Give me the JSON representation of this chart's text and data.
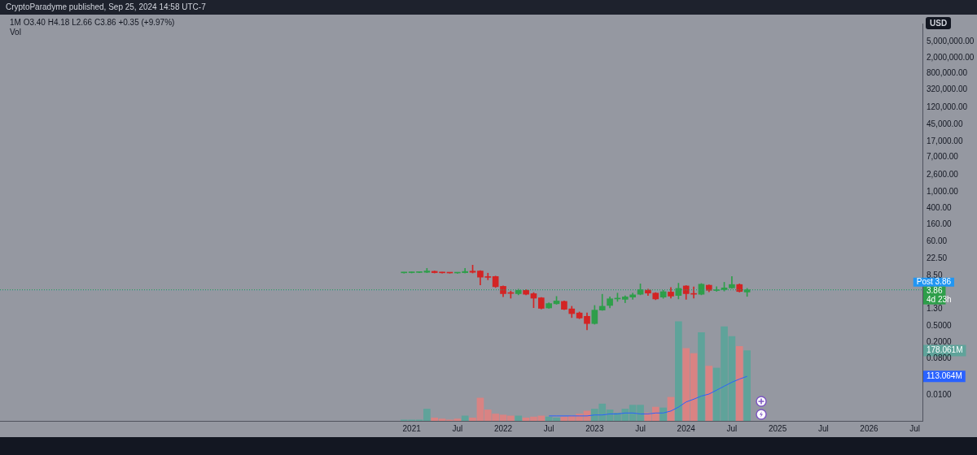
{
  "chart_data": [
    {
      "type": "candlestick",
      "title": "1M  O3.40 H4.18 L2.66 C3.86 +0.35 (+9.97%)",
      "subtitle": "CryptoParadyme published, Sep 25, 2024 14:58 UTC-7",
      "ylabel": "USD",
      "x": [
        "2020-12",
        "2021-01",
        "2021-02",
        "2021-03",
        "2021-04",
        "2021-05",
        "2021-06",
        "2021-07",
        "2021-08",
        "2021-09",
        "2021-10",
        "2021-11",
        "2021-12",
        "2022-01",
        "2022-02",
        "2022-03",
        "2022-04",
        "2022-05",
        "2022-06",
        "2022-07",
        "2022-08",
        "2022-09",
        "2022-10",
        "2022-11",
        "2022-12",
        "2023-01",
        "2023-02",
        "2023-03",
        "2023-04",
        "2023-05",
        "2023-06",
        "2023-07",
        "2023-08",
        "2023-09",
        "2023-10",
        "2023-11",
        "2023-12",
        "2024-01",
        "2024-02",
        "2024-03",
        "2024-04",
        "2024-05",
        "2024-06",
        "2024-07",
        "2024-08",
        "2024-09"
      ],
      "ohlc": [
        [
          10.1,
          10.4,
          9.9,
          10.2
        ],
        [
          10.2,
          10.6,
          10.0,
          10.3
        ],
        [
          10.3,
          10.8,
          10.1,
          10.4
        ],
        [
          10.4,
          13.0,
          10.2,
          11.2
        ],
        [
          11.0,
          11.2,
          10.0,
          10.2
        ],
        [
          10.2,
          10.4,
          9.9,
          10.1
        ],
        [
          10.1,
          10.3,
          9.9,
          10.0
        ],
        [
          10.0,
          10.3,
          9.8,
          10.1
        ],
        [
          10.2,
          13.0,
          10.0,
          10.9
        ],
        [
          11.1,
          15.6,
          10.0,
          10.4
        ],
        [
          11.2,
          11.4,
          5.1,
          7.9
        ],
        [
          7.9,
          9.9,
          6.8,
          7.8
        ],
        [
          8.2,
          8.4,
          4.4,
          4.6
        ],
        [
          4.7,
          4.8,
          2.6,
          3.1
        ],
        [
          3.2,
          3.6,
          2.4,
          3.15
        ],
        [
          3.1,
          4.0,
          2.9,
          3.75
        ],
        [
          3.75,
          3.9,
          2.9,
          3.0
        ],
        [
          3.1,
          3.3,
          1.4,
          2.4
        ],
        [
          2.45,
          2.5,
          1.3,
          1.35
        ],
        [
          1.38,
          1.85,
          1.35,
          1.77
        ],
        [
          1.75,
          2.65,
          1.7,
          2.05
        ],
        [
          2.0,
          2.05,
          1.25,
          1.28
        ],
        [
          1.31,
          1.52,
          0.8,
          1.0
        ],
        [
          1.04,
          1.1,
          0.75,
          0.78
        ],
        [
          0.86,
          1.04,
          0.4,
          0.57
        ],
        [
          0.57,
          1.59,
          0.55,
          1.22
        ],
        [
          1.22,
          3.0,
          1.2,
          1.52
        ],
        [
          1.59,
          2.58,
          1.38,
          2.32
        ],
        [
          2.3,
          3.2,
          2.0,
          2.35
        ],
        [
          2.25,
          2.75,
          1.86,
          2.58
        ],
        [
          2.55,
          3.2,
          2.25,
          2.9
        ],
        [
          3.0,
          5.4,
          2.9,
          3.9
        ],
        [
          3.8,
          4.0,
          2.8,
          3.2
        ],
        [
          3.2,
          3.3,
          2.2,
          2.3
        ],
        [
          2.55,
          3.75,
          2.38,
          3.47
        ],
        [
          3.4,
          4.4,
          2.4,
          2.7
        ],
        [
          2.8,
          5.6,
          2.3,
          4.17
        ],
        [
          4.8,
          4.9,
          2.25,
          3.1
        ],
        [
          3.05,
          4.55,
          2.4,
          3.0
        ],
        [
          3.0,
          5.5,
          2.9,
          5.3
        ],
        [
          5.0,
          5.1,
          3.45,
          3.75
        ],
        [
          3.7,
          4.6,
          3.55,
          3.8
        ],
        [
          3.9,
          5.9,
          3.6,
          4.3
        ],
        [
          4.3,
          8.2,
          4.17,
          5.2
        ],
        [
          5.2,
          5.4,
          3.4,
          3.51
        ],
        [
          3.4,
          4.18,
          2.66,
          3.86
        ]
      ],
      "xlim": [
        "2016-07",
        "2026-08"
      ],
      "xticks": [
        {
          "value": "2021-01",
          "label": "2021"
        },
        {
          "value": "2021-07",
          "label": "Jul"
        },
        {
          "value": "2022-01",
          "label": "2022"
        },
        {
          "value": "2022-07",
          "label": "Jul"
        },
        {
          "value": "2023-01",
          "label": "2023"
        },
        {
          "value": "2023-07",
          "label": "Jul"
        },
        {
          "value": "2024-01",
          "label": "2024"
        },
        {
          "value": "2024-07",
          "label": "Jul"
        },
        {
          "value": "2025-01",
          "label": "2025"
        },
        {
          "value": "2025-07",
          "label": "Jul"
        },
        {
          "value": "2026-01",
          "label": "2026"
        },
        {
          "value": "2026-07",
          "label": "Jul"
        }
      ],
      "log": true,
      "ylim": [
        0.0023,
        13700000
      ],
      "yticks": [
        {
          "value": 0.01,
          "label": "0.0100"
        },
        {
          "value": 0.08,
          "label": "0.0800"
        },
        {
          "value": 0.2,
          "label": "0.2000"
        },
        {
          "value": 0.5,
          "label": "0.5000"
        },
        {
          "value": 1.3,
          "label": "1.30"
        },
        {
          "value": 8.5,
          "label": "8.50"
        },
        {
          "value": 22.5,
          "label": "22.50"
        },
        {
          "value": 60,
          "label": "60.00"
        },
        {
          "value": 160,
          "label": "160.00"
        },
        {
          "value": 400,
          "label": "400.00"
        },
        {
          "value": 1000,
          "label": "1,000.00"
        },
        {
          "value": 2600,
          "label": "2,600.00"
        },
        {
          "value": 7000,
          "label": "7,000.00"
        },
        {
          "value": 17000,
          "label": "17,000.00"
        },
        {
          "value": 45000,
          "label": "45,000.00"
        },
        {
          "value": 120000,
          "label": "120,000.00"
        },
        {
          "value": 320000,
          "label": "320,000.00"
        },
        {
          "value": 800000,
          "label": "800,000.00"
        },
        {
          "value": 2000000,
          "label": "2,000,000.00"
        },
        {
          "value": 5000000,
          "label": "5,000,000.00"
        }
      ],
      "ref_lines": [
        {
          "axis": "y",
          "value": 3.86,
          "label": "Post 3.86",
          "color": "#2196f3",
          "line_style": "dotted"
        },
        {
          "axis": "y",
          "value": 3.86,
          "label": "3.86",
          "color": "#2e9e4a",
          "line_style": "dotted"
        }
      ],
      "annotations": [
        "4d 23h"
      ]
    },
    {
      "type": "bar",
      "title": "Vol",
      "tick_labels": "y",
      "xlim": [
        "2016-07",
        "2026-08"
      ],
      "ylim": [
        0,
        1008
      ],
      "yticks": [
        {
          "value": 113.064,
          "label": "113.064M"
        },
        {
          "value": 178.061,
          "label": "178.061M"
        }
      ],
      "x": [
        "2020-12",
        "2021-01",
        "2021-02",
        "2021-03",
        "2021-04",
        "2021-05",
        "2021-06",
        "2021-07",
        "2021-08",
        "2021-09",
        "2021-10",
        "2021-11",
        "2021-12",
        "2022-01",
        "2022-02",
        "2022-03",
        "2022-04",
        "2022-05",
        "2022-06",
        "2022-07",
        "2022-08",
        "2022-09",
        "2022-10",
        "2022-11",
        "2022-12",
        "2023-01",
        "2023-02",
        "2023-03",
        "2023-04",
        "2023-05",
        "2023-06",
        "2023-07",
        "2023-08",
        "2023-09",
        "2023-10",
        "2023-11",
        "2023-12",
        "2024-01",
        "2024-02",
        "2024-03",
        "2024-04",
        "2024-05",
        "2024-06",
        "2024-07",
        "2024-08",
        "2024-09"
      ],
      "series": [
        {
          "type": "bar",
          "values": [
            2.5,
            2.5,
            2.5,
            30,
            7.6,
            5,
            2.5,
            5,
            12.6,
            7.6,
            58,
            28,
            17.6,
            15,
            12.6,
            12.6,
            7.6,
            10,
            12.6,
            10,
            7.6,
            10,
            12.6,
            17.6,
            25,
            30,
            43,
            28,
            20,
            30,
            40,
            40,
            20,
            35,
            33,
            60,
            252,
            184,
            171,
            224,
            139,
            134,
            239,
            214,
            189,
            178
          ],
          "colors": [
            "#5fa39a",
            "#5fa39a",
            "#5fa39a",
            "#5fa39a",
            "#d98383",
            "#d98383",
            "#d98383",
            "#d98383",
            "#5fa39a",
            "#d98383",
            "#d98383",
            "#d98383",
            "#d98383",
            "#d98383",
            "#d98383",
            "#5fa39a",
            "#d98383",
            "#d98383",
            "#d98383",
            "#5fa39a",
            "#5fa39a",
            "#d98383",
            "#d98383",
            "#d98383",
            "#d98383",
            "#5fa39a",
            "#5fa39a",
            "#5fa39a",
            "#5fa39a",
            "#5fa39a",
            "#5fa39a",
            "#5fa39a",
            "#d98383",
            "#d98383",
            "#5fa39a",
            "#d98383",
            "#5fa39a",
            "#d98383",
            "#d98383",
            "#5fa39a",
            "#d98383",
            "#5fa39a",
            "#5fa39a",
            "#5fa39a",
            "#d98383",
            "#5fa39a"
          ]
        },
        {
          "type": "line",
          "color": "#2962ff",
          "x": [
            "2022-07",
            "2022-08",
            "2022-09",
            "2022-10",
            "2022-11",
            "2022-12",
            "2023-01",
            "2023-02",
            "2023-03",
            "2023-04",
            "2023-05",
            "2023-06",
            "2023-07",
            "2023-08",
            "2023-09",
            "2023-10",
            "2023-11",
            "2023-12",
            "2024-01",
            "2024-02",
            "2024-03",
            "2024-04",
            "2024-05",
            "2024-06",
            "2024-07",
            "2024-08",
            "2024-09"
          ],
          "values": [
            12.6,
            12.6,
            12.6,
            12.6,
            12.6,
            12.6,
            15,
            15,
            17.6,
            17.6,
            20,
            20,
            17.6,
            17.6,
            20,
            20,
            25,
            35,
            48,
            55,
            63,
            68,
            78,
            88,
            98,
            106,
            113
          ]
        }
      ]
    }
  ]
}
